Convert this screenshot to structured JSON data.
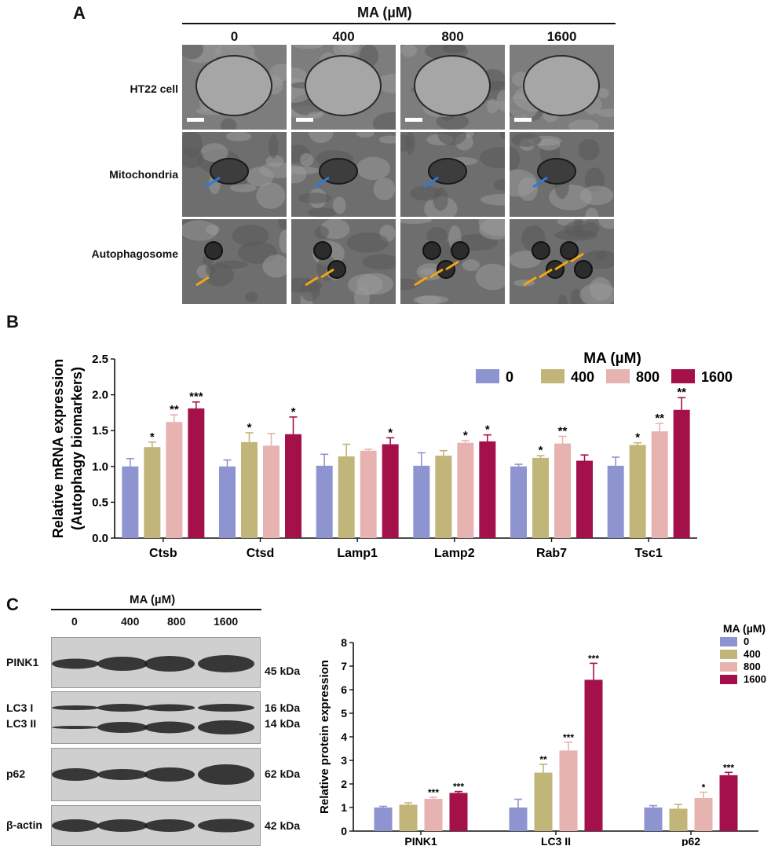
{
  "panels": {
    "a": "A",
    "b": "B",
    "c": "C"
  },
  "panel_a": {
    "treatment_label": "MA (µM)",
    "doses": [
      "0",
      "400",
      "800",
      "1600"
    ],
    "rows": [
      "HT22 cell",
      "Mitochondria",
      "Autophagosome"
    ]
  },
  "chart_data": [
    {
      "type": "bar",
      "title": "",
      "legend_title": "MA (µM)",
      "legend_position": "top-right",
      "ylabel": "Relative mRNA expression (Autophagy biomarkers)",
      "ylabel_lines": [
        "Relative mRNA expression",
        "(Autophagy biomarkers)"
      ],
      "xlabel": "",
      "ylim": [
        0,
        2.5
      ],
      "yticks": [
        "0.0",
        "0.5",
        "1.0",
        "1.5",
        "2.0",
        "2.5"
      ],
      "categories": [
        "Ctsb",
        "Ctsd",
        "Lamp1",
        "Lamp2",
        "Rab7",
        "Tsc1"
      ],
      "series": [
        {
          "name": "0",
          "color": "#8e94d0",
          "values": [
            1.0,
            1.0,
            1.01,
            1.01,
            1.0,
            1.01
          ],
          "errors": [
            0.11,
            0.09,
            0.16,
            0.18,
            0.03,
            0.12
          ],
          "sig": [
            "",
            "",
            "",
            "",
            "",
            ""
          ]
        },
        {
          "name": "400",
          "color": "#c2b57a",
          "values": [
            1.27,
            1.34,
            1.14,
            1.15,
            1.12,
            1.3
          ],
          "errors": [
            0.07,
            0.13,
            0.17,
            0.07,
            0.03,
            0.03
          ],
          "sig": [
            "*",
            "*",
            "",
            "",
            "*",
            "*"
          ]
        },
        {
          "name": "800",
          "color": "#e6b3b1",
          "values": [
            1.62,
            1.29,
            1.22,
            1.33,
            1.32,
            1.49
          ],
          "errors": [
            0.1,
            0.17,
            0.02,
            0.03,
            0.1,
            0.11
          ],
          "sig": [
            "**",
            "",
            "",
            "*",
            "**",
            "**"
          ]
        },
        {
          "name": "1600",
          "color": "#a3104a",
          "values": [
            1.81,
            1.45,
            1.31,
            1.35,
            1.08,
            1.79
          ],
          "errors": [
            0.09,
            0.24,
            0.09,
            0.09,
            0.08,
            0.17
          ],
          "sig": [
            "***",
            "*",
            "*",
            "*",
            "",
            "**"
          ]
        }
      ]
    },
    {
      "type": "bar",
      "title": "",
      "legend_title": "MA (µM)",
      "legend_position": "top-right",
      "ylabel": "Relative protein expression",
      "xlabel": "",
      "ylim": [
        0,
        8
      ],
      "yticks": [
        "0",
        "1",
        "2",
        "3",
        "4",
        "5",
        "6",
        "7",
        "8"
      ],
      "categories": [
        "PINK1",
        "LC3 II",
        "p62"
      ],
      "series": [
        {
          "name": "0",
          "color": "#8e94d0",
          "values": [
            1.0,
            1.0,
            1.0
          ],
          "errors": [
            0.05,
            0.35,
            0.08
          ],
          "sig": [
            "",
            "",
            ""
          ]
        },
        {
          "name": "400",
          "color": "#c2b57a",
          "values": [
            1.12,
            2.48,
            0.95
          ],
          "errors": [
            0.08,
            0.35,
            0.18
          ],
          "sig": [
            "",
            "**",
            ""
          ]
        },
        {
          "name": "800",
          "color": "#e6b3b1",
          "values": [
            1.37,
            3.42,
            1.4
          ],
          "errors": [
            0.06,
            0.35,
            0.25
          ],
          "sig": [
            "***",
            "***",
            "*"
          ]
        },
        {
          "name": "1600",
          "color": "#a3104a",
          "values": [
            1.62,
            6.42,
            2.37
          ],
          "errors": [
            0.06,
            0.7,
            0.12
          ],
          "sig": [
            "***",
            "***",
            "***"
          ]
        }
      ]
    }
  ],
  "panel_c_blot": {
    "treatment_label": "MA (µM)",
    "doses": [
      "0",
      "400",
      "800",
      "1600"
    ],
    "bands": [
      {
        "label": "PINK1",
        "kda": "45 kDa"
      },
      {
        "label": "LC3 I",
        "kda": "16 kDa"
      },
      {
        "label": "LC3 II",
        "kda": "14 kDa"
      },
      {
        "label": "p62",
        "kda": "62 kDa"
      },
      {
        "label": "β-actin",
        "kda": "42 kDa"
      }
    ]
  }
}
